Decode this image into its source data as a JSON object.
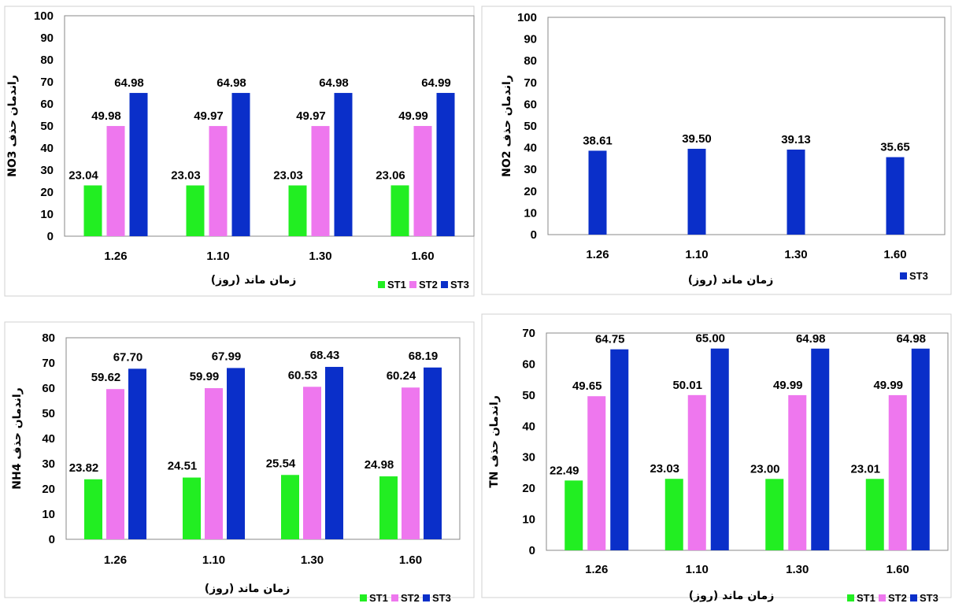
{
  "colors": {
    "ST1": "#22ee22",
    "ST2": "#ee77ee",
    "ST3": "#0a2fc9"
  },
  "chart_data": [
    {
      "type": "bar",
      "title": "",
      "xlabel": "زمان ماند (روز)",
      "ylabel": "NO3 راندمان حذف",
      "categories": [
        "1.26",
        "1.10",
        "1.30",
        "1.60"
      ],
      "ylim": [
        0,
        100
      ],
      "ytick_step": 10,
      "grid": false,
      "legend": "bottom-right",
      "series": [
        {
          "name": "ST1",
          "values": [
            23.04,
            23.03,
            23.03,
            23.06
          ],
          "labels": [
            "23.04",
            "23.03",
            "23.03",
            "23.06"
          ]
        },
        {
          "name": "ST2",
          "values": [
            49.98,
            49.97,
            49.97,
            49.99
          ],
          "labels": [
            "49.98",
            "49.97",
            "49.97",
            "49.99"
          ]
        },
        {
          "name": "ST3",
          "values": [
            64.98,
            64.98,
            64.98,
            64.99
          ],
          "labels": [
            "64.98",
            "64.98",
            "64.98",
            "64.99"
          ]
        }
      ]
    },
    {
      "type": "bar",
      "title": "",
      "xlabel": "زمان ماند (روز)",
      "ylabel": "NO2 راندمان حذف",
      "categories": [
        "1.26",
        "1.10",
        "1.30",
        "1.60"
      ],
      "ylim": [
        0,
        100
      ],
      "ytick_step": 10,
      "grid": false,
      "legend": "bottom-right",
      "series": [
        {
          "name": "ST3",
          "values": [
            38.61,
            39.5,
            39.13,
            35.65
          ],
          "labels": [
            "38.61",
            "39.50",
            "39.13",
            "35.65"
          ]
        }
      ]
    },
    {
      "type": "bar",
      "title": "",
      "xlabel": "زمان ماند (روز)",
      "ylabel": "NH4 راندمان حذف",
      "categories": [
        "1.26",
        "1.10",
        "1.30",
        "1.60"
      ],
      "ylim": [
        0,
        80
      ],
      "ytick_step": 10,
      "grid": false,
      "legend": "bottom-right",
      "series": [
        {
          "name": "ST1",
          "values": [
            23.82,
            24.51,
            25.54,
            24.98
          ],
          "labels": [
            "23.82",
            "24.51",
            "25.54",
            "24.98"
          ]
        },
        {
          "name": "ST2",
          "values": [
            59.62,
            59.99,
            60.53,
            60.24
          ],
          "labels": [
            "59.62",
            "59.99",
            "60.53",
            "60.24"
          ]
        },
        {
          "name": "ST3",
          "values": [
            67.7,
            67.99,
            68.43,
            68.19
          ],
          "labels": [
            "67.70",
            "67.99",
            "68.43",
            "68.19"
          ]
        }
      ]
    },
    {
      "type": "bar",
      "title": "",
      "xlabel": "زمان ماند (روز)",
      "ylabel": "TN راندمان حذف",
      "categories": [
        "1.26",
        "1.10",
        "1.30",
        "1.60"
      ],
      "ylim": [
        0,
        70
      ],
      "ytick_step": 10,
      "grid": false,
      "legend": "bottom-right",
      "series": [
        {
          "name": "ST1",
          "values": [
            22.49,
            23.03,
            23.0,
            23.01
          ],
          "labels": [
            "22.49",
            "23.03",
            "23.00",
            "23.01"
          ]
        },
        {
          "name": "ST2",
          "values": [
            49.65,
            50.01,
            49.99,
            49.99
          ],
          "labels": [
            "49.65",
            "50.01",
            "49.99",
            "49.99"
          ]
        },
        {
          "name": "ST3",
          "values": [
            64.75,
            65.0,
            64.98,
            64.98
          ],
          "labels": [
            "64.75",
            "65.00",
            "64.98",
            "64.98"
          ]
        }
      ]
    }
  ]
}
